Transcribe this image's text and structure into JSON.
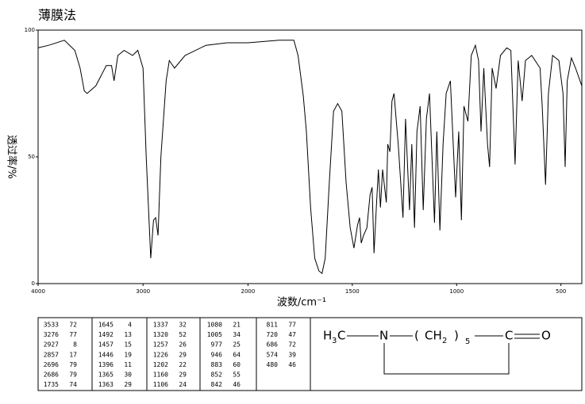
{
  "chart_data": {
    "type": "line",
    "title": "薄膜法",
    "ylabel": "透过率/%",
    "xlabel": "波数/cm⁻¹",
    "xlim": [
      4000,
      400
    ],
    "x_scale_break": 2000,
    "ylim": [
      0,
      100
    ],
    "xticks": [
      4000,
      3000,
      2000,
      1500,
      1000,
      500
    ],
    "yticks": [
      0,
      50,
      100
    ],
    "color": "#000000",
    "x": [
      4000,
      3900,
      3750,
      3650,
      3600,
      3560,
      3533,
      3450,
      3350,
      3300,
      3276,
      3240,
      3180,
      3100,
      3050,
      3000,
      2970,
      2927,
      2900,
      2880,
      2857,
      2830,
      2780,
      2750,
      2700,
      2600,
      2400,
      2200,
      2000,
      1850,
      1780,
      1760,
      1735,
      1720,
      1700,
      1680,
      1660,
      1645,
      1630,
      1610,
      1590,
      1570,
      1550,
      1530,
      1510,
      1492,
      1475,
      1465,
      1457,
      1446,
      1430,
      1415,
      1405,
      1396,
      1385,
      1375,
      1365,
      1355,
      1337,
      1330,
      1320,
      1310,
      1300,
      1280,
      1257,
      1245,
      1226,
      1215,
      1202,
      1190,
      1175,
      1160,
      1145,
      1130,
      1106,
      1095,
      1080,
      1065,
      1050,
      1030,
      1005,
      990,
      977,
      965,
      946,
      930,
      910,
      895,
      883,
      870,
      852,
      842,
      830,
      811,
      790,
      760,
      740,
      720,
      705,
      686,
      670,
      640,
      600,
      590,
      574,
      560,
      540,
      510,
      490,
      480,
      470,
      450,
      430,
      400
    ],
    "y": [
      93,
      94,
      96,
      92,
      85,
      76,
      75,
      78,
      86,
      86,
      80,
      90,
      92,
      90,
      92,
      85,
      50,
      10,
      25,
      26,
      19,
      50,
      80,
      88,
      85,
      90,
      94,
      95,
      95,
      96,
      96,
      90,
      74,
      60,
      30,
      10,
      5,
      4,
      10,
      40,
      68,
      71,
      68,
      40,
      22,
      14,
      23,
      26,
      16,
      19,
      22,
      35,
      38,
      12,
      30,
      45,
      30,
      45,
      32,
      55,
      52,
      72,
      75,
      55,
      26,
      65,
      29,
      55,
      22,
      60,
      70,
      29,
      65,
      75,
      24,
      60,
      21,
      55,
      75,
      80,
      34,
      60,
      25,
      70,
      64,
      90,
      94,
      88,
      60,
      85,
      55,
      46,
      85,
      77,
      90,
      93,
      92,
      47,
      88,
      72,
      88,
      90,
      85,
      70,
      39,
      75,
      90,
      88,
      75,
      46,
      80,
      89,
      85,
      78
    ]
  },
  "peak_table": [
    [
      [
        3533,
        72
      ],
      [
        3276,
        77
      ],
      [
        2927,
        8
      ],
      [
        2857,
        17
      ],
      [
        2696,
        79
      ],
      [
        2686,
        79
      ],
      [
        1735,
        74
      ]
    ],
    [
      [
        1645,
        4
      ],
      [
        1492,
        13
      ],
      [
        1457,
        15
      ],
      [
        1446,
        19
      ],
      [
        1396,
        11
      ],
      [
        1365,
        30
      ],
      [
        1363,
        29
      ]
    ],
    [
      [
        1337,
        32
      ],
      [
        1320,
        52
      ],
      [
        1257,
        26
      ],
      [
        1226,
        29
      ],
      [
        1202,
        22
      ],
      [
        1160,
        29
      ],
      [
        1106,
        24
      ]
    ],
    [
      [
        1080,
        21
      ],
      [
        1005,
        34
      ],
      [
        977,
        25
      ],
      [
        946,
        64
      ],
      [
        883,
        60
      ],
      [
        852,
        55
      ],
      [
        842,
        46
      ]
    ],
    [
      [
        811,
        77
      ],
      [
        720,
        47
      ],
      [
        686,
        72
      ],
      [
        574,
        39
      ],
      [
        480,
        46
      ]
    ]
  ],
  "structure": [
    "H",
    "3",
    "C",
    "N",
    "(",
    "CH",
    "2",
    ")",
    "5",
    "C",
    "O"
  ]
}
